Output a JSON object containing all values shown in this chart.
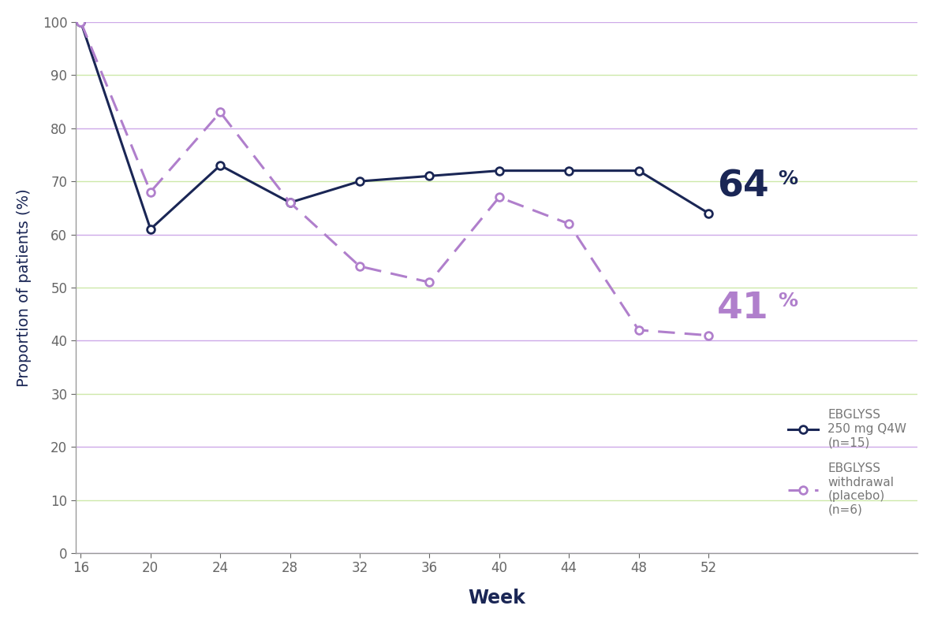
{
  "ebglyss_x": [
    16,
    20,
    24,
    28,
    32,
    36,
    40,
    44,
    48,
    52
  ],
  "ebglyss_y": [
    100,
    61,
    73,
    66,
    70,
    71,
    72,
    72,
    72,
    64
  ],
  "placebo_x": [
    16,
    20,
    24,
    28,
    32,
    36,
    40,
    44,
    48,
    52
  ],
  "placebo_y": [
    100,
    68,
    83,
    66,
    54,
    51,
    67,
    62,
    42,
    41
  ],
  "ebglyss_color": "#1a2655",
  "placebo_color": "#b07fcc",
  "xlabel": "Week",
  "ylabel": "Proportion of patients (%)",
  "ylim": [
    0,
    100
  ],
  "xlim_min": 16,
  "xlim_max": 52,
  "xticks": [
    16,
    20,
    24,
    28,
    32,
    36,
    40,
    44,
    48,
    52
  ],
  "yticks": [
    0,
    10,
    20,
    30,
    40,
    50,
    60,
    70,
    80,
    90,
    100
  ],
  "legend1_label": "EBGLYSS\n250 mg Q4W\n(n=15)",
  "legend2_label": "EBGLYSS\nwithdrawal\n(placebo)\n(n=6)",
  "annotation_64": "64",
  "annotation_41": "41",
  "grid_green": "#c8e6a0",
  "grid_purple": "#c8a0e6",
  "background_color": "#ffffff",
  "xlabel_color": "#1a2655",
  "ylabel_color": "#1a2655",
  "tick_color": "#666666",
  "axis_label_fontsize": 14,
  "tick_fontsize": 12
}
